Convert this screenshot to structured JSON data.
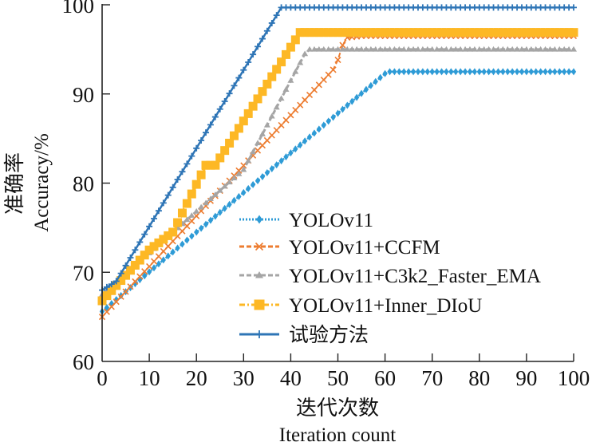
{
  "chart_data": {
    "type": "line",
    "title": "",
    "xlabel": "迭代次数",
    "xlabel_en": "Iteration count",
    "ylabel": "准确率",
    "ylabel_en": "Accuracy/%",
    "xlim": [
      0,
      100
    ],
    "ylim": [
      60,
      100
    ],
    "xticks": [
      0,
      10,
      20,
      30,
      40,
      50,
      60,
      70,
      80,
      90,
      100
    ],
    "yticks": [
      60,
      70,
      80,
      90,
      100
    ],
    "grid": false,
    "legend_position": "center-bottom",
    "series": [
      {
        "name": "YOLOv11",
        "color": "#2E9BD6",
        "style": "dotted",
        "marker": "diamond",
        "keypoints": [
          [
            0,
            65.6
          ],
          [
            60.5,
            92.5
          ],
          [
            100,
            92.5
          ]
        ]
      },
      {
        "name": "YOLOv11+CCFM",
        "color": "#ED7D31",
        "style": "dashed",
        "marker": "x",
        "keypoints": [
          [
            0,
            65.0
          ],
          [
            49.5,
            93.0
          ],
          [
            51.5,
            96.3
          ],
          [
            55,
            96.5
          ],
          [
            100,
            96.5
          ]
        ]
      },
      {
        "name": "YOLOv11+C3k2_Faster_EMA",
        "color": "#A5A5A5",
        "style": "dashed",
        "marker": "triangle",
        "keypoints": [
          [
            0,
            67.5
          ],
          [
            30,
            81.5
          ],
          [
            43.5,
            95.0
          ],
          [
            100,
            95.0
          ]
        ]
      },
      {
        "name": "YOLOv11+Inner_DIoU",
        "color": "#FDB825",
        "style": "dashdot",
        "marker": "square",
        "keypoints": [
          [
            0,
            66.8
          ],
          [
            10,
            72.5
          ],
          [
            15,
            74.5
          ],
          [
            22,
            82.0
          ],
          [
            24,
            82.0
          ],
          [
            42,
            96.9
          ],
          [
            100,
            96.9
          ]
        ]
      },
      {
        "name": "试验方法",
        "color": "#2E75B6",
        "style": "solid",
        "marker": "plus",
        "keypoints": [
          [
            0,
            68.0
          ],
          [
            3,
            69.0
          ],
          [
            38,
            99.7
          ],
          [
            100,
            99.7
          ]
        ]
      }
    ]
  }
}
